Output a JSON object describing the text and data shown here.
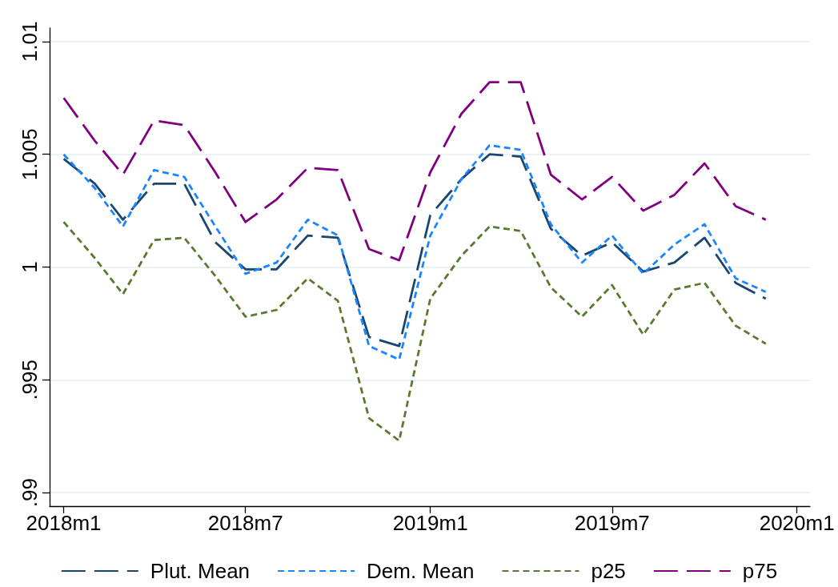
{
  "chart_data": {
    "type": "line",
    "x": [
      "2018-01",
      "2018-02",
      "2018-03",
      "2018-04",
      "2018-05",
      "2018-06",
      "2018-07",
      "2018-08",
      "2018-09",
      "2018-10",
      "2018-11",
      "2018-12",
      "2019-01",
      "2019-02",
      "2019-03",
      "2019-04",
      "2019-05",
      "2019-06",
      "2019-07",
      "2019-08",
      "2019-09",
      "2019-10",
      "2019-11",
      "2019-12"
    ],
    "series": [
      {
        "name": "Plut. Mean",
        "color": "#1a476f",
        "line_style": "dashed",
        "values": [
          1.0048,
          1.0037,
          1.0021,
          1.0037,
          1.0037,
          1.0011,
          0.9999,
          0.9999,
          1.0014,
          1.0013,
          0.9969,
          0.9965,
          1.0023,
          1.0039,
          1.005,
          1.0049,
          1.0017,
          1.0005,
          1.0011,
          0.9998,
          1.0002,
          1.0013,
          0.9993,
          0.9986
        ]
      },
      {
        "name": "Dem. Mean",
        "color": "#1a85ff",
        "line_style": "dotted",
        "values": [
          1.005,
          1.0035,
          1.0018,
          1.0043,
          1.004,
          1.0018,
          0.9997,
          1.0002,
          1.0021,
          1.0014,
          0.9965,
          0.9959,
          1.0014,
          1.0039,
          1.0054,
          1.0052,
          1.0019,
          1.0002,
          1.0014,
          0.9997,
          1.001,
          1.0019,
          0.9995,
          0.9989
        ]
      },
      {
        "name": "p25",
        "color": "#5a7a2f",
        "line_style": "dotted",
        "values": [
          1.002,
          1.0004,
          0.9988,
          1.0012,
          1.0013,
          0.9996,
          0.9978,
          0.9981,
          0.9995,
          0.9985,
          0.9933,
          0.9923,
          0.9986,
          1.0005,
          1.0018,
          1.0016,
          0.9991,
          0.9978,
          0.9992,
          0.997,
          0.999,
          0.9993,
          0.9974,
          0.9966
        ]
      },
      {
        "name": "p75",
        "color": "#800080",
        "line_style": "dashed",
        "values": [
          1.0075,
          1.0056,
          1.0041,
          1.0065,
          1.0063,
          1.0042,
          1.002,
          1.003,
          1.0044,
          1.0043,
          1.0008,
          1.0003,
          1.0042,
          1.0068,
          1.0082,
          1.0082,
          1.0041,
          1.003,
          1.004,
          1.0025,
          1.0032,
          1.0046,
          1.0027,
          1.0021
        ]
      }
    ],
    "xlim": [
      "2017-12-18",
      "2020-01-14"
    ],
    "xticks": [
      {
        "value": "2018-01",
        "label": "2018m1"
      },
      {
        "value": "2018-07",
        "label": "2018m7"
      },
      {
        "value": "2019-01",
        "label": "2019m1"
      },
      {
        "value": "2019-07",
        "label": "2019m7"
      },
      {
        "value": "2020-01",
        "label": "2020m1"
      }
    ],
    "ylim": [
      0.9894,
      1.0106
    ],
    "yticks": [
      {
        "value": 0.99,
        "label": ".99"
      },
      {
        "value": 0.995,
        "label": ".995"
      },
      1,
      1.005,
      1.01
    ],
    "grid": "y",
    "legend": "bottom"
  }
}
